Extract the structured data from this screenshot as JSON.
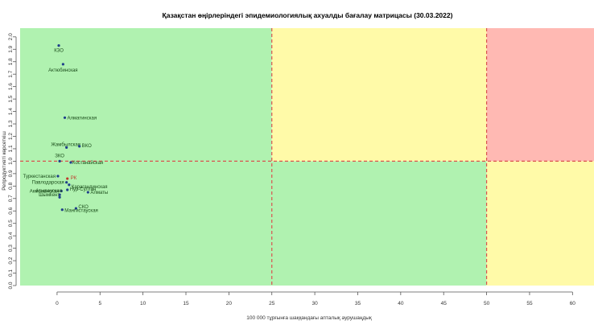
{
  "chart_data": {
    "type": "scatter",
    "title": "Қазақстан өңірлеріндегі эпидемиологиялық ахуалды бағалау матрицасы  (30.03.2022)",
    "xlabel": "100 000 тұрғынға шаққандағы апталық аурушаңдық",
    "ylabel": "Репродуктивті көрсеткіш",
    "xlim": [
      -4.3,
      62.5
    ],
    "ylim": [
      0.0,
      2.07
    ],
    "x_ticks": [
      "0",
      "5",
      "10",
      "15",
      "20",
      "25",
      "30",
      "35",
      "40",
      "45",
      "50",
      "55",
      "60"
    ],
    "y_ticks": [
      "0.0",
      "0.1",
      "0.2",
      "0.3",
      "0.4",
      "0.5",
      "0.6",
      "0.7",
      "0.8",
      "0.9",
      "1.0",
      "1.1",
      "1.2",
      "1.3",
      "1.4",
      "1.5",
      "1.6",
      "1.7",
      "1.8",
      "1.9",
      "2.0"
    ],
    "zones": [
      {
        "x": [
          -4.3,
          25
        ],
        "y": [
          1.0,
          2.07
        ],
        "color": "#b0f2b0"
      },
      {
        "x": [
          25,
          50
        ],
        "y": [
          1.0,
          2.07
        ],
        "color": "#fffaa8"
      },
      {
        "x": [
          50,
          62.5
        ],
        "y": [
          1.0,
          2.07
        ],
        "color": "#ffb9b3"
      },
      {
        "x": [
          -4.3,
          50
        ],
        "y": [
          0.0,
          1.0
        ],
        "color": "#b0f2b0"
      },
      {
        "x": [
          50,
          62.5
        ],
        "y": [
          0.0,
          1.0
        ],
        "color": "#fffaa8"
      }
    ],
    "thresholds": {
      "x": [
        25,
        50
      ],
      "y": [
        1.0
      ],
      "color": "#d9534f"
    },
    "points": [
      {
        "label": "КЗО",
        "x": 0.2,
        "y": 1.93
      },
      {
        "label": "Актюбинская",
        "x": 0.7,
        "y": 1.78
      },
      {
        "label": "Алматинская",
        "x": 0.9,
        "y": 1.35
      },
      {
        "label": "Жамбылская",
        "x": 1.1,
        "y": 1.11
      },
      {
        "label": "ВКО",
        "x": 2.6,
        "y": 1.12
      },
      {
        "label": "ЗКО",
        "x": 0.3,
        "y": 1.0
      },
      {
        "label": "Костанайская",
        "x": 1.6,
        "y": 0.99
      },
      {
        "label": "Туркестанская",
        "x": 0.1,
        "y": 0.88
      },
      {
        "label": "РК",
        "x": 1.2,
        "y": 0.86
      },
      {
        "label": "Павлодарская",
        "x": 1.1,
        "y": 0.83
      },
      {
        "label": "Карагандинская",
        "x": 1.4,
        "y": 0.81
      },
      {
        "label": "Акмолинская",
        "x": 0.5,
        "y": 0.76
      },
      {
        "label": "Нур-Султан",
        "x": 1.2,
        "y": 0.77
      },
      {
        "label": "Алматы",
        "x": 3.6,
        "y": 0.75
      },
      {
        "label": "Шымкент",
        "x": 0.3,
        "y": 0.73
      },
      {
        "label": "Атырауская",
        "x": 0.3,
        "y": 0.71
      },
      {
        "label": "СКО",
        "x": 2.2,
        "y": 0.62
      },
      {
        "label": "Мангистауская",
        "x": 0.6,
        "y": 0.61
      }
    ]
  }
}
